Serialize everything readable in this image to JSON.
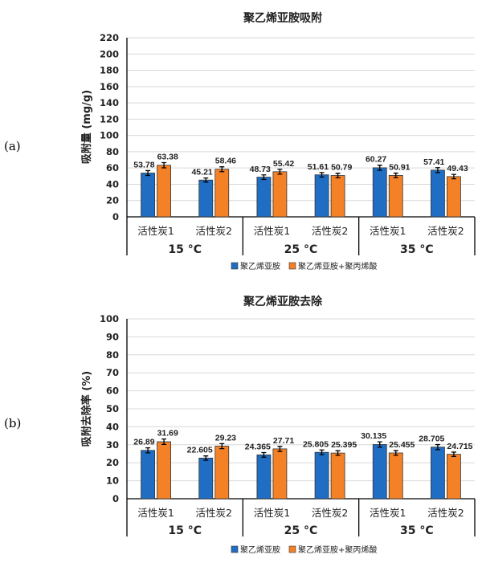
{
  "colors": {
    "series1": "#1f6ec4",
    "series2": "#f58127",
    "grid": "#d9d9d9",
    "axis": "#000000"
  },
  "chart_data": [
    {
      "panel_label": "(a)",
      "type": "bar",
      "title": "聚乙烯亚胺吸附",
      "ylabel": "吸附量 (mg/g)",
      "ylim": [
        0,
        220
      ],
      "yticks": [
        0,
        20,
        40,
        60,
        80,
        100,
        120,
        140,
        160,
        180,
        200,
        220
      ],
      "grid": true,
      "legend_position": "bottom",
      "groups": [
        {
          "label": "15 °C",
          "categories": [
            "活性炭1",
            "活性炭2"
          ]
        },
        {
          "label": "25 °C",
          "categories": [
            "活性炭1",
            "活性炭2"
          ]
        },
        {
          "label": "35 °C",
          "categories": [
            "活性炭1",
            "活性炭2"
          ]
        }
      ],
      "series": [
        {
          "name": "聚乙烯亚胺",
          "values": [
            53.78,
            45.21,
            48.73,
            51.61,
            60.27,
            57.41
          ],
          "labels": [
            "53.78",
            "45.21",
            "48.73",
            "51.61",
            "60.27",
            "57.41"
          ],
          "error": [
            3,
            2.5,
            2.8,
            2.8,
            3.2,
            3
          ]
        },
        {
          "name": "聚乙烯亚胺+聚丙烯酸",
          "values": [
            63.38,
            58.46,
            55.42,
            50.79,
            50.91,
            49.43
          ],
          "labels": [
            "63.38",
            "58.46",
            "55.42",
            "50.79",
            "50.91",
            "49.43"
          ],
          "error": [
            3.2,
            3,
            3,
            2.8,
            2.8,
            2.7
          ]
        }
      ]
    },
    {
      "panel_label": "(b)",
      "type": "bar",
      "title": "聚乙烯亚胺去除",
      "ylabel": "吸附去除率 (%)",
      "ylim": [
        0,
        100
      ],
      "yticks": [
        0,
        10,
        20,
        30,
        40,
        50,
        60,
        70,
        80,
        90,
        100
      ],
      "grid": true,
      "legend_position": "bottom",
      "groups": [
        {
          "label": "15 °C",
          "categories": [
            "活性炭1",
            "活性炭2"
          ]
        },
        {
          "label": "25 °C",
          "categories": [
            "活性炭1",
            "活性炭2"
          ]
        },
        {
          "label": "35 °C",
          "categories": [
            "活性炭1",
            "活性炭2"
          ]
        }
      ],
      "series": [
        {
          "name": "聚乙烯亚胺",
          "values": [
            26.89,
            22.605,
            24.365,
            25.805,
            30.135,
            28.705
          ],
          "labels": [
            "26.89",
            "22.605",
            "24.365",
            "25.805",
            "30.135",
            "28.705"
          ],
          "error": [
            1.4,
            1.2,
            1.3,
            1.3,
            1.5,
            1.4
          ]
        },
        {
          "name": "聚乙烯亚胺+聚丙烯酸",
          "values": [
            31.69,
            29.23,
            27.71,
            25.395,
            25.455,
            24.715
          ],
          "labels": [
            "31.69",
            "29.23",
            "27.71",
            "25.395",
            "25.455",
            "24.715"
          ],
          "error": [
            1.5,
            1.4,
            1.4,
            1.3,
            1.3,
            1.2
          ]
        }
      ]
    }
  ]
}
